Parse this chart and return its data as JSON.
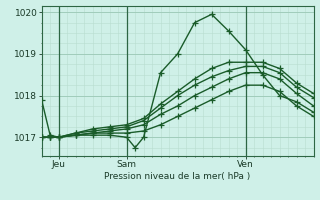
{
  "bg_color": "#cff0e8",
  "grid_color_major": "#a0ccbb",
  "grid_color_minor": "#b8ddd0",
  "line_color": "#1a5c2a",
  "marker": "+",
  "markersize": 4,
  "linewidth": 1.0,
  "title": "Pression niveau de la mer( hPa )",
  "ylabel_ticks": [
    1017,
    1018,
    1019,
    1020
  ],
  "ylim": [
    1016.55,
    1020.15
  ],
  "xlim": [
    0,
    96
  ],
  "xtick_positions": [
    6,
    30,
    72
  ],
  "xtick_labels": [
    "Jeu",
    "Sam",
    "Ven"
  ],
  "vlines": [
    6,
    30,
    72
  ],
  "series": [
    [
      0,
      1017.9,
      3,
      1017.05,
      6,
      1017.0,
      12,
      1017.05,
      18,
      1017.05,
      24,
      1017.05,
      30,
      1017.0,
      33,
      1016.75,
      36,
      1017.0,
      42,
      1018.55,
      48,
      1019.0,
      54,
      1019.75,
      60,
      1019.95,
      66,
      1019.55,
      72,
      1019.1,
      78,
      1018.5,
      84,
      1018.0,
      90,
      1017.85,
      96,
      1017.6
    ],
    [
      0,
      1017.0,
      3,
      1017.0,
      6,
      1017.0,
      12,
      1017.05,
      18,
      1017.1,
      24,
      1017.1,
      30,
      1017.1,
      36,
      1017.15,
      42,
      1017.3,
      48,
      1017.5,
      54,
      1017.7,
      60,
      1017.9,
      66,
      1018.1,
      72,
      1018.25,
      78,
      1018.25,
      84,
      1018.1,
      90,
      1017.75,
      96,
      1017.5
    ],
    [
      0,
      1017.0,
      3,
      1017.0,
      6,
      1017.0,
      12,
      1017.05,
      18,
      1017.1,
      24,
      1017.15,
      30,
      1017.2,
      36,
      1017.3,
      42,
      1017.55,
      48,
      1017.75,
      54,
      1018.0,
      60,
      1018.2,
      66,
      1018.4,
      72,
      1018.55,
      78,
      1018.55,
      84,
      1018.4,
      90,
      1018.05,
      96,
      1017.75
    ],
    [
      0,
      1017.0,
      3,
      1017.0,
      6,
      1017.0,
      12,
      1017.1,
      18,
      1017.15,
      24,
      1017.2,
      30,
      1017.25,
      36,
      1017.4,
      42,
      1017.7,
      48,
      1018.0,
      54,
      1018.25,
      60,
      1018.45,
      66,
      1018.6,
      72,
      1018.7,
      78,
      1018.7,
      84,
      1018.55,
      90,
      1018.2,
      96,
      1017.95
    ],
    [
      0,
      1017.0,
      3,
      1017.0,
      6,
      1017.0,
      12,
      1017.1,
      18,
      1017.2,
      24,
      1017.25,
      30,
      1017.3,
      36,
      1017.45,
      42,
      1017.8,
      48,
      1018.1,
      54,
      1018.4,
      60,
      1018.65,
      66,
      1018.8,
      72,
      1018.8,
      78,
      1018.8,
      84,
      1018.65,
      90,
      1018.3,
      96,
      1018.05
    ]
  ]
}
